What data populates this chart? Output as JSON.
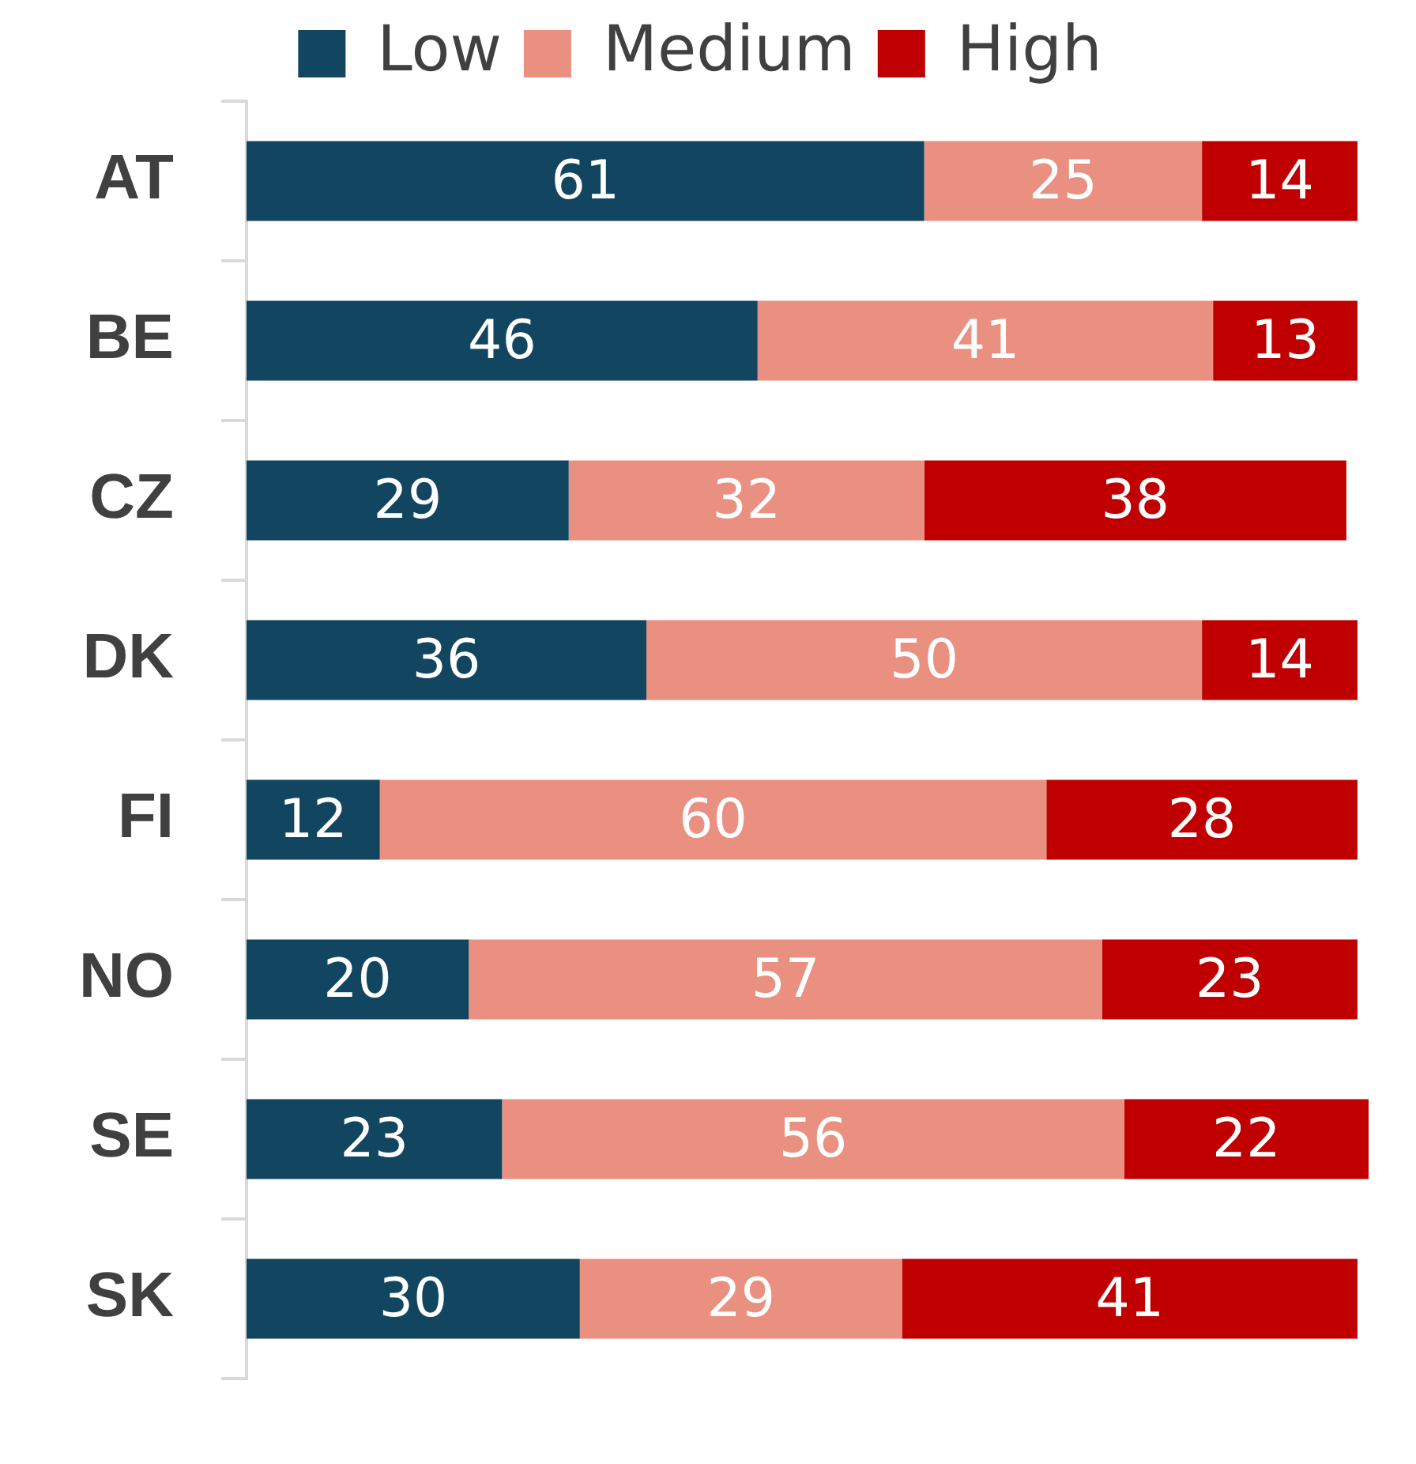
{
  "chart_data": {
    "type": "bar",
    "orientation": "horizontal",
    "stacked": true,
    "data_labels": true,
    "legend": "top",
    "grid": false,
    "tick_labels": "y",
    "xlim": [
      0,
      101
    ],
    "categories": [
      "AT",
      "BE",
      "CZ",
      "DK",
      "FI",
      "NO",
      "SE",
      "SK"
    ],
    "series": [
      {
        "name": "Low",
        "color": "#12455f",
        "values": [
          61,
          46,
          29,
          36,
          12,
          20,
          23,
          30
        ]
      },
      {
        "name": "Medium",
        "color": "#ea9080",
        "values": [
          25,
          41,
          32,
          50,
          60,
          57,
          56,
          29
        ]
      },
      {
        "name": "High",
        "color": "#c00000",
        "values": [
          14,
          13,
          38,
          14,
          28,
          23,
          22,
          41
        ]
      }
    ]
  }
}
